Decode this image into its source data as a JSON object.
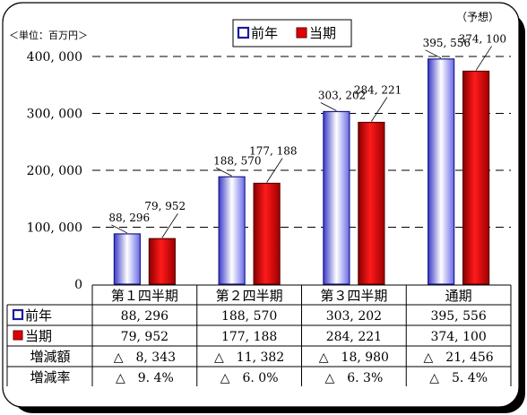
{
  "unit_label": "＜単位：百万円＞",
  "forecast_note": "（予想）",
  "legend": {
    "prev": "前年",
    "curr": "当期"
  },
  "colors": {
    "prev_edge": "#2020a0",
    "prev_mid": "#ffffff",
    "prev_side": "#6a6ae8",
    "curr_edge": "#7a0000",
    "curr_mid": "#ff2020",
    "curr_side": "#b00000",
    "line": "#000000",
    "shadow": "#000000"
  },
  "chart_data": {
    "type": "bar",
    "categories": [
      "第１四半期",
      "第２四半期",
      "第３四半期",
      "通期"
    ],
    "series": [
      {
        "name": "前年",
        "values": [
          88296,
          188570,
          303202,
          395556
        ],
        "labels": [
          "88, 296",
          "188, 570",
          "303, 202",
          "395, 556"
        ]
      },
      {
        "name": "当期",
        "values": [
          79952,
          177188,
          284221,
          374100
        ],
        "labels": [
          "79, 952",
          "177, 188",
          "284, 221",
          "374, 100"
        ]
      }
    ],
    "ylim": [
      0,
      400000
    ],
    "yticks": [
      {
        "v": 0,
        "label": "0"
      },
      {
        "v": 100000,
        "label": "100, 000"
      },
      {
        "v": 200000,
        "label": "200, 000"
      },
      {
        "v": 300000,
        "label": "300, 000"
      },
      {
        "v": 400000,
        "label": "400, 000"
      }
    ],
    "grid": "dashed"
  },
  "table": {
    "rows": [
      {
        "label": "前年",
        "marker": "prev",
        "cells": [
          "88, 296",
          "188, 570",
          "303, 202",
          "395, 556"
        ]
      },
      {
        "label": "当期",
        "marker": "curr",
        "cells": [
          "79, 952",
          "177, 188",
          "284, 221",
          "374, 100"
        ]
      },
      {
        "label": "増減額",
        "marker": "",
        "cells": [
          "△　8, 343",
          "△　11, 382",
          "△　18, 980",
          "△　21, 456"
        ]
      },
      {
        "label": "増減率",
        "marker": "",
        "cells": [
          "△　9. 4%",
          "△　6. 0%",
          "△　6. 3%",
          "△　5. 4%"
        ]
      }
    ]
  }
}
